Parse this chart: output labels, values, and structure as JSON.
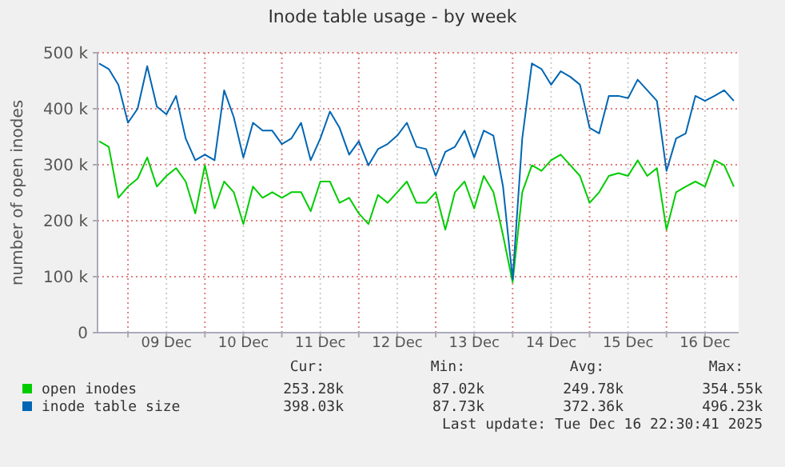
{
  "chart_data": {
    "type": "line",
    "title": "Inode table usage - by week",
    "ylabel": "number of open inodes",
    "x": [
      "2025-12-08T15:00",
      "2025-12-08T18:00",
      "2025-12-08T21:00",
      "2025-12-09T00:00",
      "2025-12-09T03:00",
      "2025-12-09T06:00",
      "2025-12-09T09:00",
      "2025-12-09T12:00",
      "2025-12-09T15:00",
      "2025-12-09T18:00",
      "2025-12-09T21:00",
      "2025-12-10T00:00",
      "2025-12-10T03:00",
      "2025-12-10T06:00",
      "2025-12-10T09:00",
      "2025-12-10T12:00",
      "2025-12-10T15:00",
      "2025-12-10T18:00",
      "2025-12-10T21:00",
      "2025-12-11T00:00",
      "2025-12-11T03:00",
      "2025-12-11T06:00",
      "2025-12-11T09:00",
      "2025-12-11T12:00",
      "2025-12-11T15:00",
      "2025-12-11T18:00",
      "2025-12-11T21:00",
      "2025-12-12T00:00",
      "2025-12-12T03:00",
      "2025-12-12T06:00",
      "2025-12-12T09:00",
      "2025-12-12T12:00",
      "2025-12-12T15:00",
      "2025-12-12T18:00",
      "2025-12-12T21:00",
      "2025-12-13T00:00",
      "2025-12-13T03:00",
      "2025-12-13T06:00",
      "2025-12-13T09:00",
      "2025-12-13T12:00",
      "2025-12-13T15:00",
      "2025-12-13T18:00",
      "2025-12-13T21:00",
      "2025-12-14T00:00",
      "2025-12-14T03:00",
      "2025-12-14T06:00",
      "2025-12-14T09:00",
      "2025-12-14T12:00",
      "2025-12-14T15:00",
      "2025-12-14T18:00",
      "2025-12-14T21:00",
      "2025-12-15T00:00",
      "2025-12-15T03:00",
      "2025-12-15T06:00",
      "2025-12-15T09:00",
      "2025-12-15T12:00",
      "2025-12-15T15:00",
      "2025-12-15T18:00",
      "2025-12-15T21:00",
      "2025-12-16T00:00",
      "2025-12-16T03:00",
      "2025-12-16T06:00",
      "2025-12-16T09:00",
      "2025-12-16T12:00",
      "2025-12-16T15:00",
      "2025-12-16T18:00",
      "2025-12-16T21:00"
    ],
    "series": [
      {
        "name": "open inodes",
        "color": "#00cc00",
        "values": [
          342000,
          332000,
          241000,
          261000,
          275000,
          313000,
          261000,
          280000,
          294000,
          270000,
          213000,
          299000,
          222000,
          270000,
          251000,
          194000,
          261000,
          241000,
          251000,
          241000,
          251000,
          251000,
          217000,
          270000,
          270000,
          232000,
          241000,
          213000,
          194000,
          246000,
          232000,
          251000,
          270000,
          232000,
          232000,
          251000,
          184000,
          251000,
          270000,
          222000,
          280000,
          251000,
          174000,
          90000,
          251000,
          299000,
          289000,
          308000,
          318000,
          299000,
          280000,
          232000,
          251000,
          280000,
          285000,
          280000,
          308000,
          280000,
          294000,
          184000,
          251000,
          261000,
          270000,
          261000,
          308000,
          299000,
          261000
        ]
      },
      {
        "name": "inode table size",
        "color": "#0066b3",
        "values": [
          481000,
          471000,
          443000,
          375000,
          400000,
          476000,
          404000,
          390000,
          423000,
          347000,
          308000,
          318000,
          308000,
          433000,
          385000,
          313000,
          375000,
          361000,
          361000,
          337000,
          347000,
          375000,
          308000,
          347000,
          395000,
          366000,
          318000,
          342000,
          299000,
          328000,
          337000,
          352000,
          375000,
          332000,
          328000,
          280000,
          323000,
          332000,
          361000,
          313000,
          361000,
          352000,
          261000,
          95000,
          347000,
          481000,
          471000,
          443000,
          467000,
          457000,
          443000,
          366000,
          356000,
          423000,
          423000,
          419000,
          452000,
          433000,
          414000,
          289000,
          347000,
          356000,
          423000,
          414000,
          423000,
          433000,
          414000
        ]
      }
    ],
    "xlim": [
      "2025-12-08T14:30",
      "2025-12-16T22:30"
    ],
    "xticks": [
      {
        "value": "2025-12-09T00:00",
        "label": null
      },
      {
        "value": "2025-12-09T12:00",
        "label": "09 Dec"
      },
      {
        "value": "2025-12-10T00:00",
        "label": null
      },
      {
        "value": "2025-12-10T12:00",
        "label": "10 Dec"
      },
      {
        "value": "2025-12-11T00:00",
        "label": null
      },
      {
        "value": "2025-12-11T12:00",
        "label": "11 Dec"
      },
      {
        "value": "2025-12-12T00:00",
        "label": null
      },
      {
        "value": "2025-12-12T12:00",
        "label": "12 Dec"
      },
      {
        "value": "2025-12-13T00:00",
        "label": null
      },
      {
        "value": "2025-12-13T12:00",
        "label": "13 Dec"
      },
      {
        "value": "2025-12-14T00:00",
        "label": null
      },
      {
        "value": "2025-12-14T12:00",
        "label": "14 Dec"
      },
      {
        "value": "2025-12-15T00:00",
        "label": null
      },
      {
        "value": "2025-12-15T12:00",
        "label": "15 Dec"
      },
      {
        "value": "2025-12-16T00:00",
        "label": null
      },
      {
        "value": "2025-12-16T12:00",
        "label": "16 Dec"
      }
    ],
    "ylim": [
      0,
      500000
    ],
    "yticks": [
      0,
      {
        "value": 100000,
        "label": "100 k"
      },
      {
        "value": 200000,
        "label": "200 k"
      },
      {
        "value": 300000,
        "label": "300 k"
      },
      {
        "value": 400000,
        "label": "400 k"
      },
      {
        "value": 500000,
        "label": "500 k"
      }
    ],
    "grid": true,
    "legend": "bottom",
    "annotations": [
      "Cur:",
      "Min:",
      "Avg:",
      "Max:",
      "253.28k",
      "87.02k",
      "249.78k",
      "354.55k",
      "398.03k",
      "87.73k",
      "372.36k",
      "496.23k",
      "Last update: Tue Dec 16 22:30:41 2025"
    ]
  }
}
